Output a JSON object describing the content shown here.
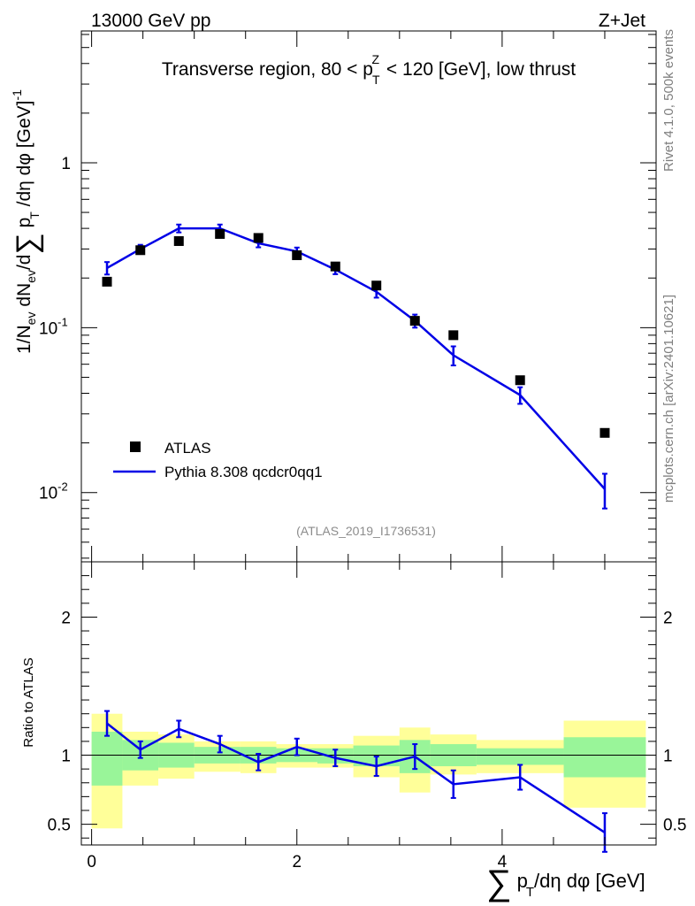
{
  "header": {
    "left": "13000 GeV pp",
    "right": "Z+Jet"
  },
  "side_labels": {
    "rivet": "Rivet 4.1.0,  500k events",
    "mcplots": "mcplots.cern.ch [arXiv:2401.10621]"
  },
  "reference": "(ATLAS_2019_I1736531)",
  "legend": {
    "data": "ATLAS",
    "mc": "Pythia 8.308 qcdcr0qq1"
  },
  "colors": {
    "mc": "#0000e6",
    "band_inner": "#99f599",
    "band_outer": "#ffff99"
  },
  "chart_data": [
    {
      "type": "line",
      "title": "Transverse region, 80 < p_T^Z < 120 [GeV], low thrust",
      "ylabel": "1/N_ev dN_ev/d∑p_T/dη dφ [GeV]^-1",
      "yscale": "log",
      "ylim": [
        0.0038,
        6.3
      ],
      "xlim": [
        -0.1,
        5.5
      ],
      "yticks": [
        {
          "value": 1,
          "label": "1"
        },
        {
          "value": 0.1,
          "label": "10^-1"
        },
        {
          "value": 0.01,
          "label": "10^-2"
        }
      ],
      "bin_edges": [
        0,
        0.3,
        0.65,
        1.0,
        1.45,
        1.8,
        2.2,
        2.55,
        3.0,
        3.3,
        3.75,
        4.6,
        5.4
      ],
      "x": [
        0.15,
        0.475,
        0.85,
        1.25,
        1.625,
        2.0,
        2.375,
        2.775,
        3.15,
        3.525,
        4.175,
        5.0
      ],
      "series": [
        {
          "name": "ATLAS",
          "values": [
            0.19,
            0.295,
            0.335,
            0.37,
            0.35,
            0.275,
            0.235,
            0.18,
            0.11,
            0.09,
            0.048,
            0.023
          ]
        },
        {
          "name": "Pythia 8.308 qcdcr0qq1",
          "values": [
            0.23,
            0.3,
            0.4,
            0.4,
            0.325,
            0.29,
            0.225,
            0.165,
            0.11,
            0.068,
            0.039,
            0.0105
          ],
          "err": [
            0.02,
            0.018,
            0.022,
            0.022,
            0.018,
            0.016,
            0.014,
            0.013,
            0.01,
            0.009,
            0.0045,
            0.0025
          ]
        }
      ]
    },
    {
      "type": "line",
      "ylabel": "Ratio to ATLAS",
      "xlabel": "∑p_T/dη dφ [GeV]",
      "ylim": [
        0.35,
        2.4
      ],
      "xlim": [
        -0.1,
        5.5
      ],
      "yticks": [
        2,
        1,
        0.5
      ],
      "xticks": [
        0,
        2,
        4
      ],
      "bands": [
        {
          "inner": [
            0.78,
            1.17
          ],
          "outer": [
            0.47,
            1.3
          ]
        },
        {
          "inner": [
            0.89,
            1.11
          ],
          "outer": [
            0.78,
            1.17
          ]
        },
        {
          "inner": [
            0.91,
            1.09
          ],
          "outer": [
            0.83,
            1.15
          ]
        },
        {
          "inner": [
            0.94,
            1.06
          ],
          "outer": [
            0.88,
            1.1
          ]
        },
        {
          "inner": [
            0.94,
            1.06
          ],
          "outer": [
            0.87,
            1.1
          ]
        },
        {
          "inner": [
            0.95,
            1.05
          ],
          "outer": [
            0.91,
            1.08
          ]
        },
        {
          "inner": [
            0.94,
            1.05
          ],
          "outer": [
            0.91,
            1.08
          ]
        },
        {
          "inner": [
            0.92,
            1.07
          ],
          "outer": [
            0.84,
            1.14
          ]
        },
        {
          "inner": [
            0.87,
            1.11
          ],
          "outer": [
            0.73,
            1.2
          ]
        },
        {
          "inner": [
            0.92,
            1.08
          ],
          "outer": [
            0.86,
            1.15
          ]
        },
        {
          "inner": [
            0.93,
            1.05
          ],
          "outer": [
            0.87,
            1.11
          ]
        },
        {
          "inner": [
            0.84,
            1.13
          ],
          "outer": [
            0.62,
            1.25
          ]
        }
      ],
      "ratio": {
        "name": "Pythia 8.308 qcdcr0qq1",
        "values": [
          1.23,
          1.04,
          1.19,
          1.08,
          0.95,
          1.06,
          0.98,
          0.92,
          0.99,
          0.79,
          0.84,
          0.44
        ],
        "err": [
          0.09,
          0.06,
          0.06,
          0.06,
          0.06,
          0.06,
          0.06,
          0.07,
          0.09,
          0.1,
          0.09,
          0.14
        ]
      }
    }
  ]
}
